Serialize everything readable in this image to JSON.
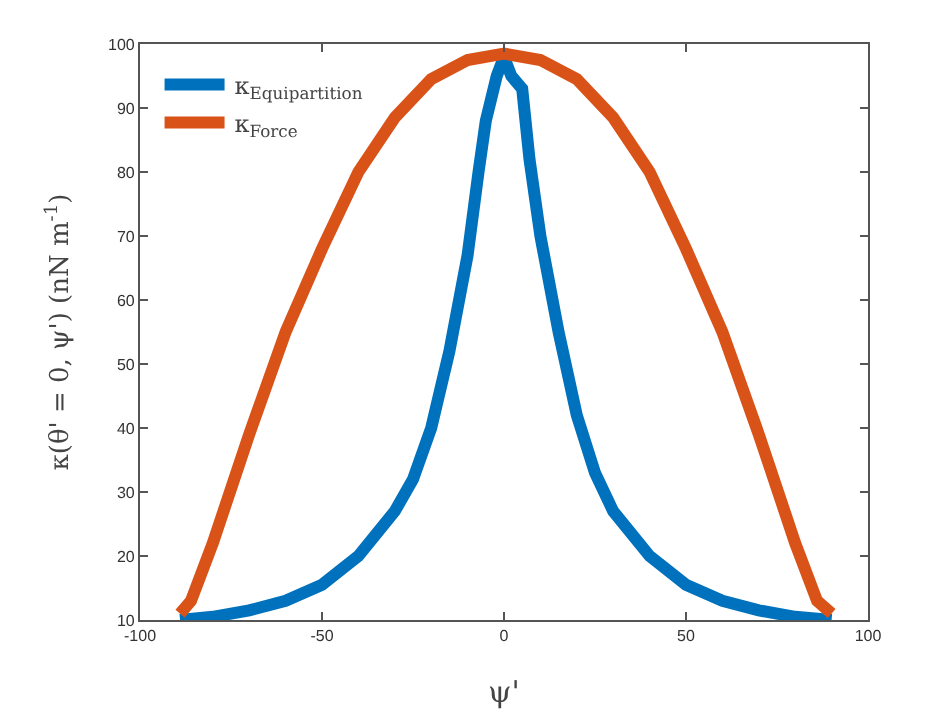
{
  "chart_data": {
    "type": "line",
    "xlabel": "ψ'",
    "ylabel": "κ(θ' = 0, ψ') (nN m$^{-1}$)",
    "xlim": [
      -100,
      100
    ],
    "xticks": [
      -100,
      -50,
      0,
      50,
      100
    ],
    "ylim": [
      10,
      100
    ],
    "yticks": [
      10,
      20,
      30,
      40,
      50,
      60,
      70,
      80,
      90,
      100
    ],
    "grid": false,
    "legend": "top left",
    "marker": "none",
    "line_style": "solid",
    "series": [
      {
        "name": "κ$_{Equipartition}$",
        "color": "#0072bd",
        "x": [
          -89,
          -80,
          -70,
          -60,
          -50,
          -40,
          -30,
          -25,
          -20,
          -15,
          -10,
          -7,
          -5,
          -2,
          0,
          2,
          5,
          7,
          10,
          15,
          20,
          25,
          30,
          40,
          50,
          60,
          70,
          80,
          90
        ],
        "values": [
          10,
          10.5,
          11.5,
          13,
          15.5,
          20,
          27,
          32,
          40,
          52,
          67,
          80,
          88,
          95,
          98,
          95,
          93,
          82,
          70,
          55,
          42,
          33,
          27,
          20,
          15.5,
          13,
          11.5,
          10.5,
          10
        ]
      },
      {
        "name": "κ$_{Force}$",
        "color": "#d95319",
        "x": [
          -89,
          -86,
          -80,
          -70,
          -60,
          -50,
          -40,
          -30,
          -20,
          -10,
          0,
          10,
          20,
          30,
          40,
          50,
          60,
          70,
          80,
          86,
          90
        ],
        "values": [
          11,
          13,
          22,
          39,
          55,
          68,
          80,
          88.5,
          94.5,
          97.5,
          98.5,
          97.5,
          94.5,
          88.5,
          80,
          68,
          55,
          39,
          22,
          13,
          11
        ]
      }
    ]
  }
}
